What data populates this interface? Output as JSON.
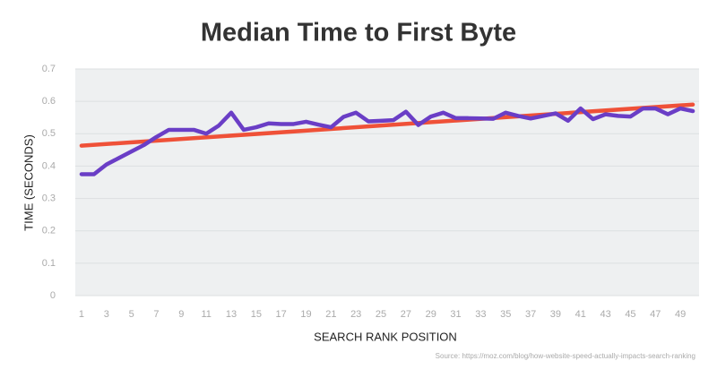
{
  "chart_data": {
    "type": "line",
    "title": "Median Time to First Byte",
    "xlabel": "SEARCH RANK POSITION",
    "ylabel": "TIME (SECONDS)",
    "source": "Source: https://moz.com/blog/how-website-speed-actually-impacts-search-ranking",
    "x": [
      1,
      2,
      3,
      4,
      5,
      6,
      7,
      8,
      9,
      10,
      11,
      12,
      13,
      14,
      15,
      16,
      17,
      18,
      19,
      20,
      21,
      22,
      23,
      24,
      25,
      26,
      27,
      28,
      29,
      30,
      31,
      32,
      33,
      34,
      35,
      36,
      37,
      38,
      39,
      40,
      41,
      42,
      43,
      44,
      45,
      46,
      47,
      48,
      49,
      50
    ],
    "series": [
      {
        "color": "#ef5138",
        "x": [
          1,
          50
        ],
        "values": [
          0.463,
          0.59
        ]
      },
      {
        "color": "#6a3ec6",
        "values": [
          0.375,
          0.375,
          0.405,
          0.425,
          0.445,
          0.465,
          0.49,
          0.512,
          0.512,
          0.512,
          0.5,
          0.525,
          0.565,
          0.512,
          0.52,
          0.532,
          0.53,
          0.53,
          0.537,
          0.528,
          0.52,
          0.552,
          0.565,
          0.538,
          0.54,
          0.542,
          0.568,
          0.527,
          0.553,
          0.565,
          0.548,
          0.548,
          0.547,
          0.546,
          0.565,
          0.555,
          0.547,
          0.555,
          0.563,
          0.54,
          0.578,
          0.545,
          0.56,
          0.555,
          0.553,
          0.578,
          0.578,
          0.56,
          0.578,
          0.57
        ]
      }
    ],
    "xlim": [
      0.5,
      50.5
    ],
    "xticks": [
      1,
      3,
      5,
      7,
      9,
      11,
      13,
      15,
      17,
      19,
      21,
      23,
      25,
      27,
      29,
      31,
      33,
      35,
      37,
      39,
      41,
      43,
      45,
      47,
      49
    ],
    "ylim": [
      0,
      0.7
    ],
    "yticks": [
      0,
      0.1,
      0.2,
      0.3,
      0.4,
      0.5,
      0.6,
      0.7
    ],
    "grid": true,
    "background": "#eef0f1"
  }
}
